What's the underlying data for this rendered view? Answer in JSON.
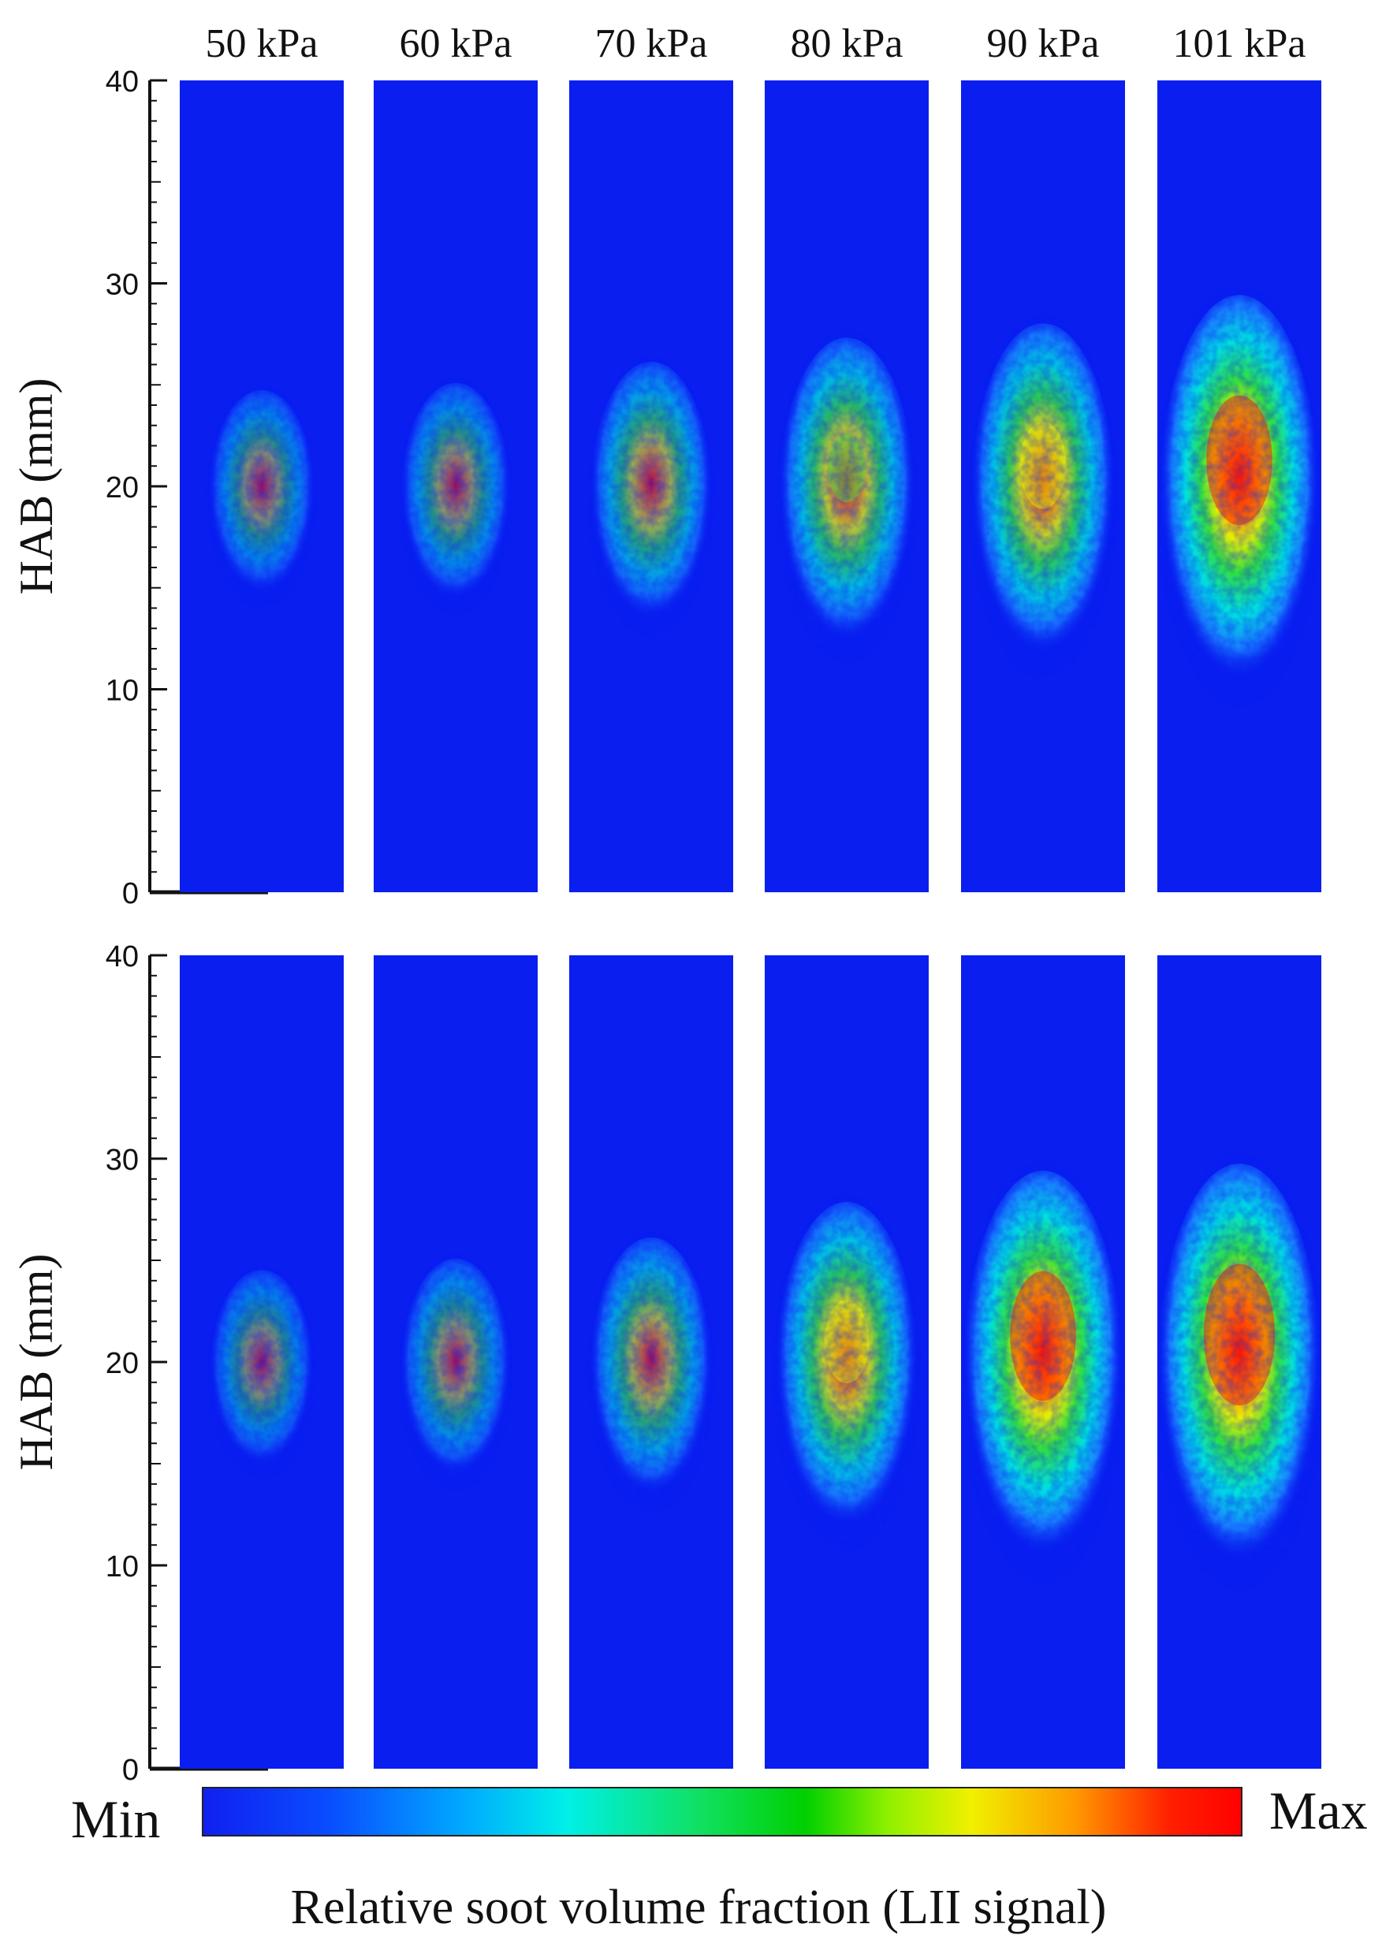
{
  "figure": {
    "columns": [
      "50 kPa",
      "60 kPa",
      "70 kPa",
      "80 kPa",
      "90 kPa",
      "101 kPa"
    ],
    "rows": [
      {
        "ylabel": "HAB (mm)",
        "ticks": [
          "0",
          "10",
          "20",
          "30",
          "40"
        ],
        "intensity": [
          0.25,
          0.3,
          0.45,
          0.62,
          0.72,
          0.92
        ]
      },
      {
        "ylabel": "HAB (mm)",
        "ticks": [
          "0",
          "10",
          "20",
          "30",
          "40"
        ],
        "intensity": [
          0.22,
          0.3,
          0.45,
          0.7,
          0.92,
          0.97
        ]
      }
    ],
    "colorbar": {
      "min_label": "Min",
      "max_label": "Max",
      "caption": "Relative soot volume fraction (LII signal)",
      "stops": [
        "#1020f0",
        "#0a4cff",
        "#00a8ff",
        "#00f0e8",
        "#10e060",
        "#00d000",
        "#90f000",
        "#f0f000",
        "#ff9900",
        "#ff2000",
        "#ff0000"
      ]
    },
    "colors": {
      "background_field": "#0a1ef0"
    }
  }
}
